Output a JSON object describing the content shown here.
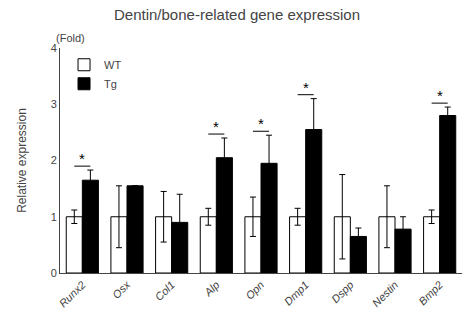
{
  "chart_data": {
    "type": "bar",
    "title": "Dentin/bone-related gene expression",
    "ylabel": "Relative expression",
    "categories": [
      "Runx2",
      "Osx",
      "Col1",
      "Alp",
      "Opn",
      "Dmp1",
      "Dspp",
      "Nestin",
      "Bmp2"
    ],
    "series": [
      {
        "name": "WT",
        "color": "white",
        "values": [
          1.0,
          1.0,
          1.0,
          1.0,
          1.0,
          1.0,
          1.0,
          1.0,
          1.0
        ],
        "errors": [
          0.12,
          0.55,
          0.45,
          0.15,
          0.35,
          0.15,
          0.75,
          0.55,
          0.12
        ]
      },
      {
        "name": "Tg",
        "color": "black",
        "values": [
          1.65,
          1.55,
          0.9,
          2.05,
          1.95,
          2.55,
          0.65,
          0.78,
          2.8
        ],
        "errors": [
          0.18,
          0.0,
          0.5,
          0.35,
          0.5,
          0.55,
          0.15,
          0.22,
          0.15
        ]
      }
    ],
    "annotations": [
      {
        "text": "(Fold)"
      },
      {
        "text": "*",
        "category": "Runx2"
      },
      {
        "text": "*",
        "category": "Alp"
      },
      {
        "text": "*",
        "category": "Opn"
      },
      {
        "text": "*",
        "category": "Dmp1"
      },
      {
        "text": "*",
        "category": "Bmp2"
      }
    ],
    "ylim": [
      0,
      4
    ],
    "yticks": [
      0,
      1,
      2,
      3,
      4
    ],
    "grid": false,
    "legend": "upper left"
  }
}
